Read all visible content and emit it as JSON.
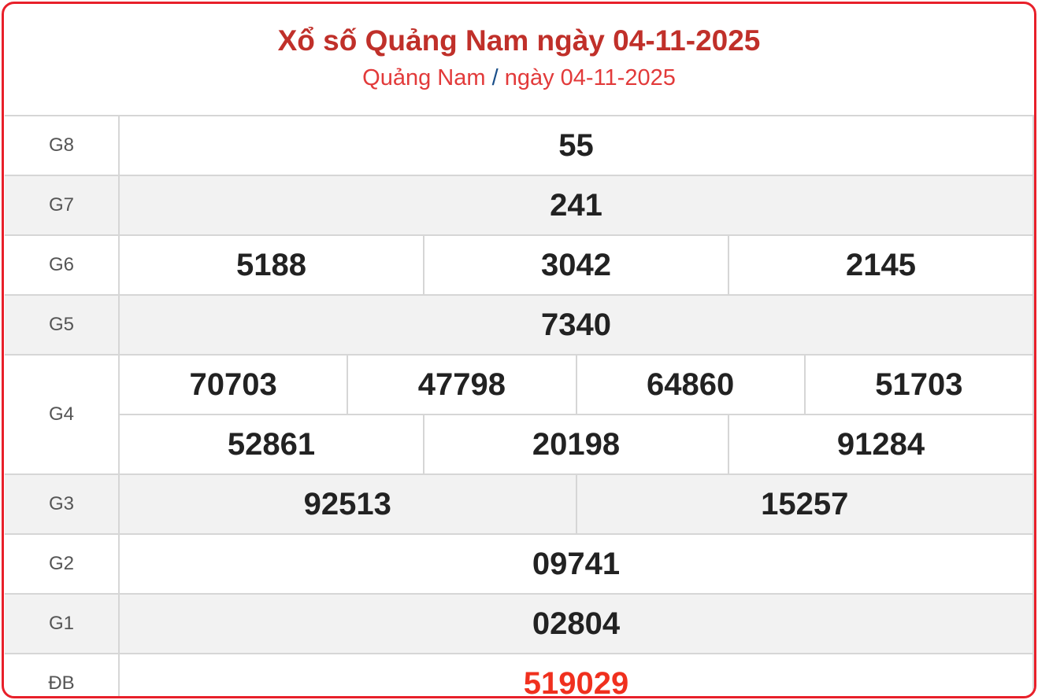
{
  "header": {
    "title": "Xổ số Quảng Nam ngày 04-11-2025",
    "sub_province": "Quảng Nam",
    "sub_separator": "/",
    "sub_date": "ngày 04-11-2025"
  },
  "prizes": [
    {
      "label": "G8",
      "rows": [
        [
          "55"
        ]
      ]
    },
    {
      "label": "G7",
      "rows": [
        [
          "241"
        ]
      ]
    },
    {
      "label": "G6",
      "rows": [
        [
          "5188",
          "3042",
          "2145"
        ]
      ]
    },
    {
      "label": "G5",
      "rows": [
        [
          "7340"
        ]
      ]
    },
    {
      "label": "G4",
      "rows": [
        [
          "70703",
          "47798",
          "64860",
          "51703"
        ],
        [
          "52861",
          "20198",
          "91284"
        ]
      ]
    },
    {
      "label": "G3",
      "rows": [
        [
          "92513",
          "15257"
        ]
      ]
    },
    {
      "label": "G2",
      "rows": [
        [
          "09741"
        ]
      ]
    },
    {
      "label": "G1",
      "rows": [
        [
          "02804"
        ]
      ]
    },
    {
      "label": "ĐB",
      "rows": [
        [
          "519029"
        ]
      ]
    }
  ],
  "colors": {
    "border": "#e8202a",
    "title": "#c0302a",
    "special": "#f0301e"
  }
}
